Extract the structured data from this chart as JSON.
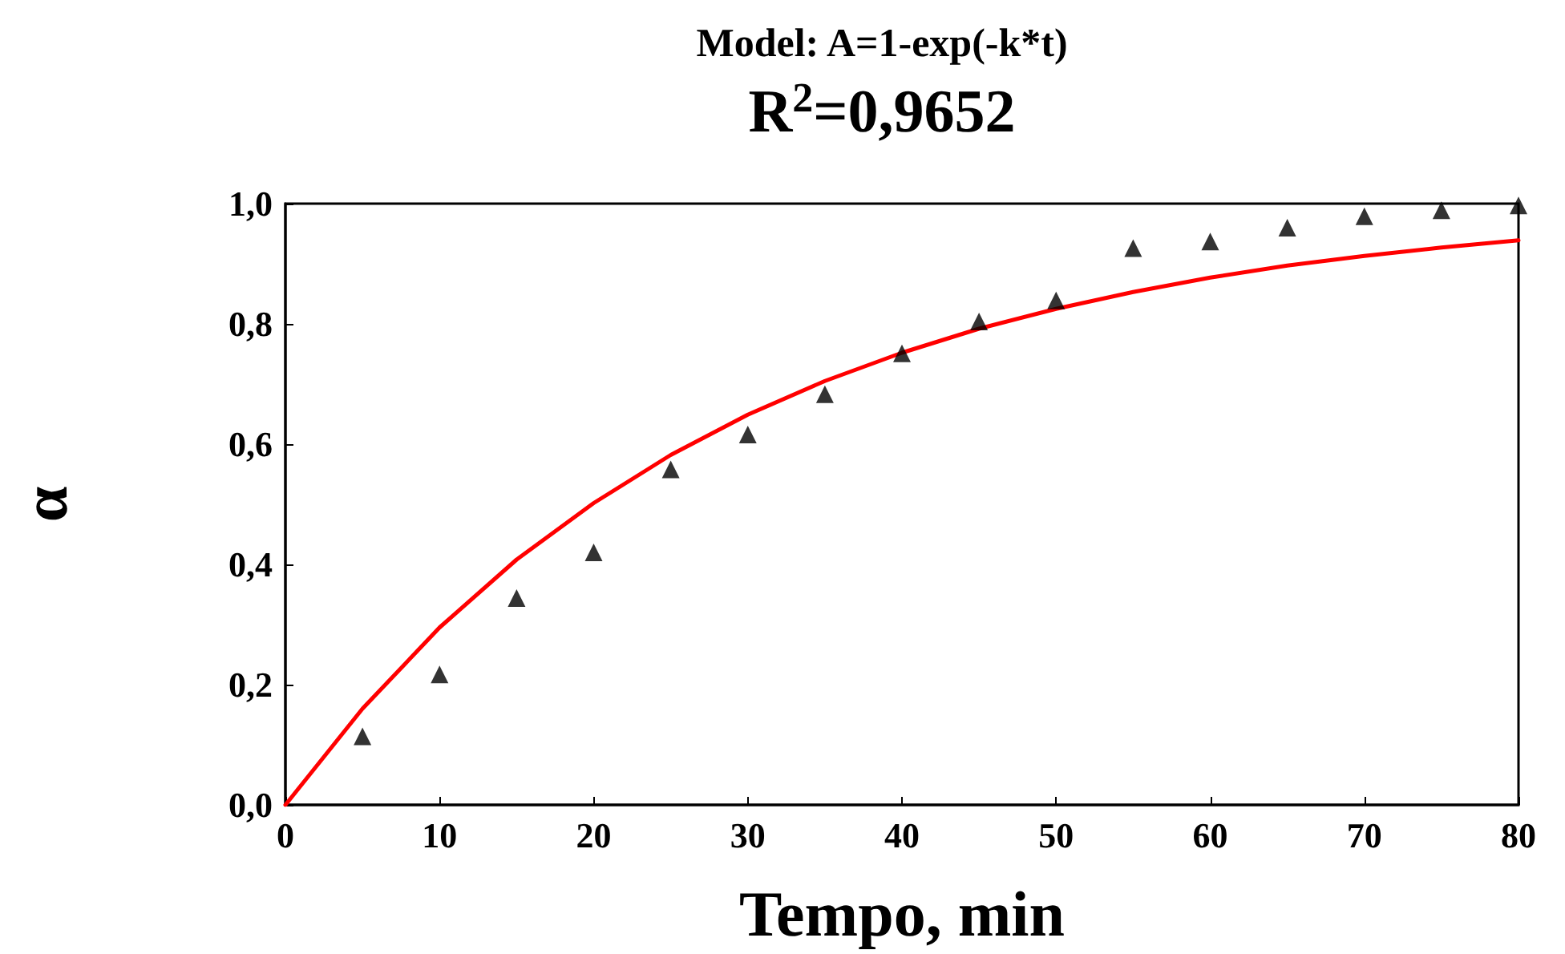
{
  "chart_data": {
    "type": "scatter",
    "title": "Model: A=1-exp(-k*t)",
    "subtitle": "R$^{2}$=0,9652",
    "xlabel": "Tempo, min",
    "ylabel": "α",
    "xlim": [
      0,
      80
    ],
    "xticks": [
      0,
      10,
      20,
      30,
      40,
      50,
      60,
      70,
      80
    ],
    "ylim": [
      0,
      1
    ],
    "yticks": [
      {
        "value": 0,
        "label": "0,0"
      },
      {
        "value": 0.2,
        "label": "0,2"
      },
      {
        "value": 0.4,
        "label": "0,4"
      },
      {
        "value": 0.6,
        "label": "0,6"
      },
      {
        "value": 0.8,
        "label": "0,8"
      },
      {
        "value": 1,
        "label": "1,0"
      }
    ],
    "grid": false,
    "series": [
      {
        "color": "#000000",
        "marker": "triangle",
        "x": [
          5,
          10,
          15,
          20,
          25,
          30,
          35,
          40,
          45,
          50,
          55,
          60,
          65,
          70,
          75,
          80
        ],
        "values": [
          0.114,
          0.217,
          0.344,
          0.42,
          0.558,
          0.616,
          0.683,
          0.751,
          0.804,
          0.839,
          0.926,
          0.937,
          0.96,
          0.979,
          0.989,
          0.997
        ]
      },
      {
        "type": "line",
        "color": "#ff0000",
        "marker": "none",
        "line_style": "solid",
        "x": [
          0,
          5,
          10,
          15,
          20,
          25,
          30,
          35,
          40,
          45,
          50,
          55,
          60,
          65,
          70,
          75,
          80
        ],
        "values": [
          0,
          0.16,
          0.295,
          0.408,
          0.502,
          0.582,
          0.649,
          0.705,
          0.752,
          0.792,
          0.825,
          0.853,
          0.877,
          0.897,
          0.913,
          0.927,
          0.939
        ]
      }
    ]
  }
}
